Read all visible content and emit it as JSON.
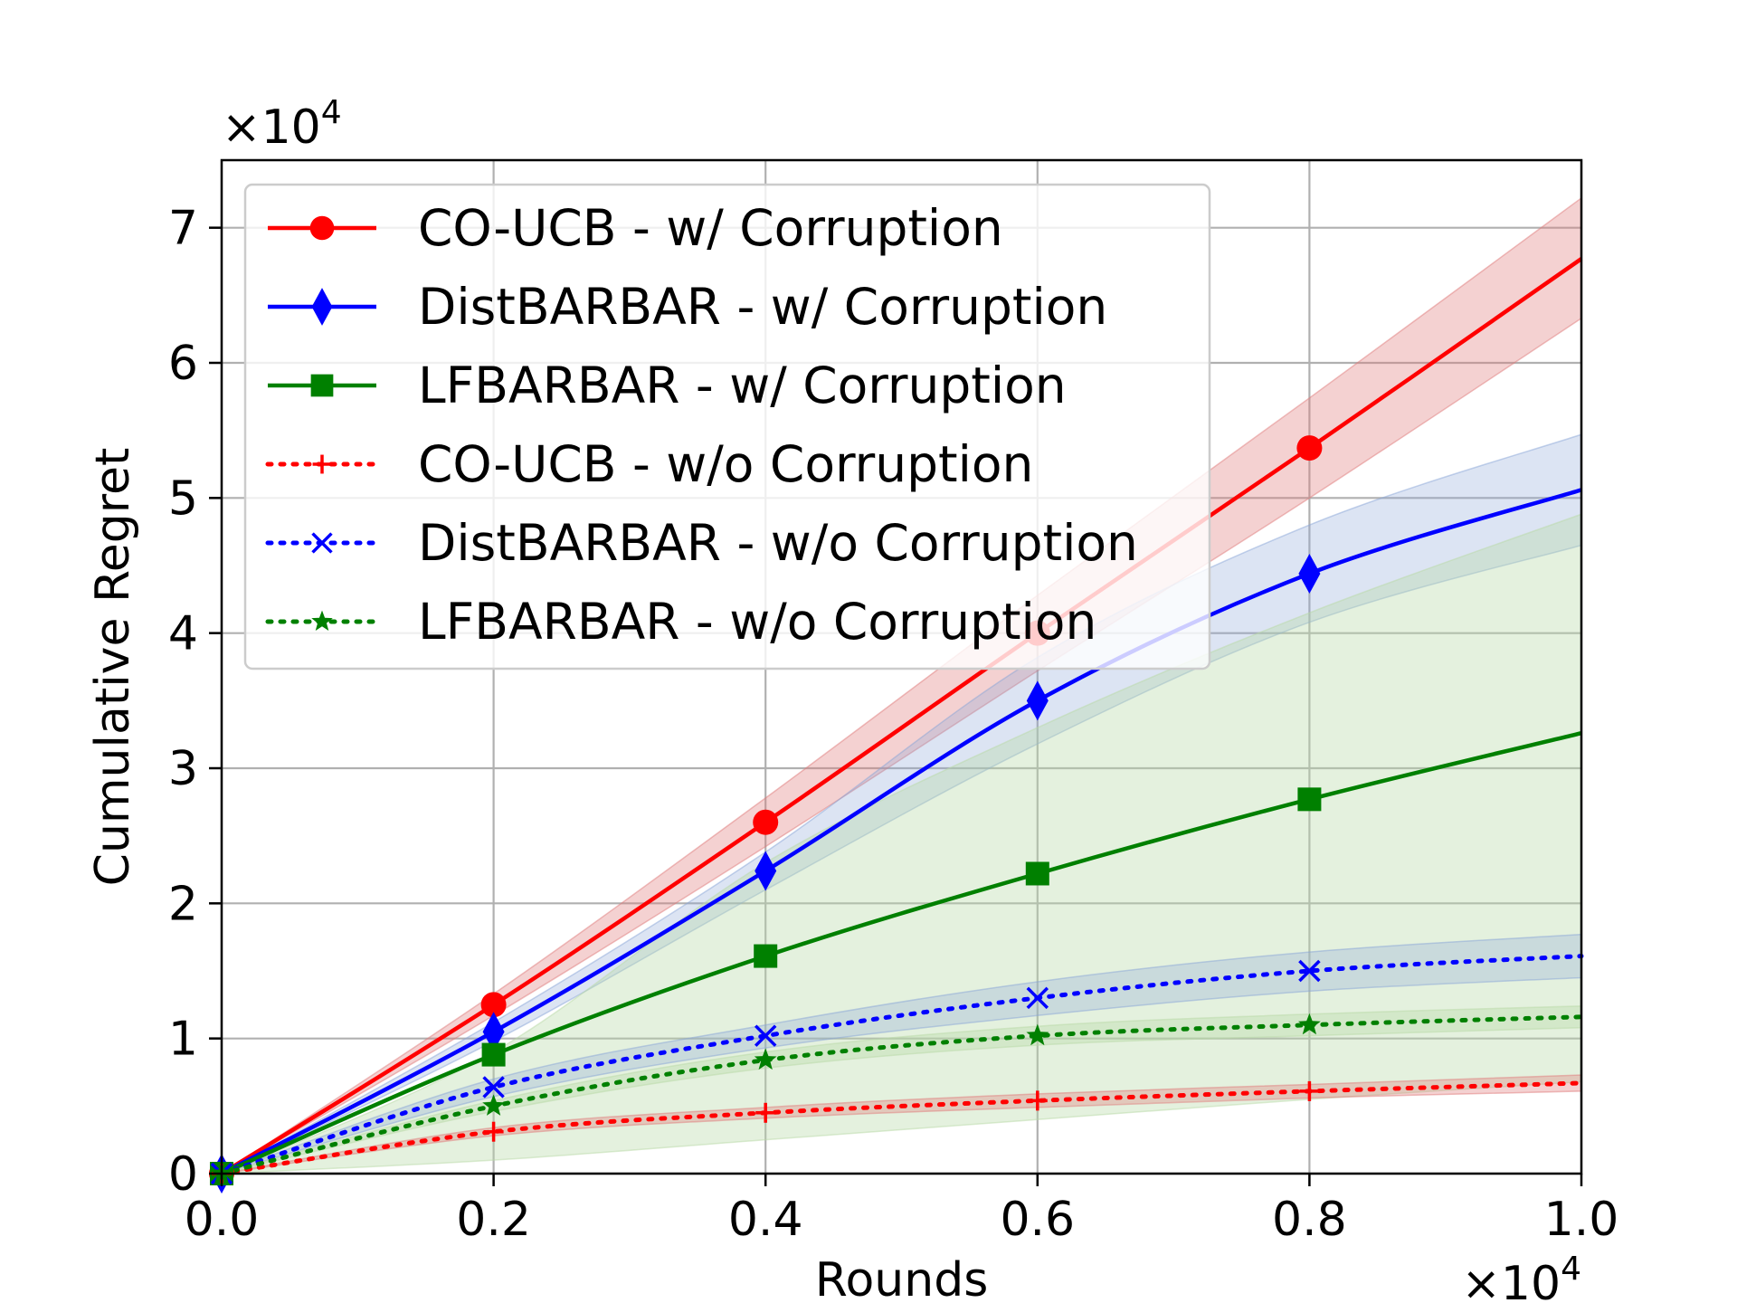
{
  "chart_data": {
    "type": "line",
    "xlabel": "Rounds",
    "ylabel": "Cumulative Regret",
    "x_multiplier": {
      "base": "×10",
      "exp": "4"
    },
    "y_multiplier": {
      "base": "×10",
      "exp": "4"
    },
    "xlim": [
      0.0,
      1.0
    ],
    "ylim": [
      0,
      7.5
    ],
    "xticks": [
      0.0,
      0.2,
      0.4,
      0.6,
      0.8,
      1.0
    ],
    "xtick_labels": [
      "0.0",
      "0.2",
      "0.4",
      "0.6",
      "0.8",
      "1.0"
    ],
    "yticks": [
      0,
      1,
      2,
      3,
      4,
      5,
      6,
      7
    ],
    "ytick_labels": [
      "0",
      "1",
      "2",
      "3",
      "4",
      "5",
      "6",
      "7"
    ],
    "grid": true,
    "legend_position": "top-left",
    "series": [
      {
        "name": "CO-UCB - w/ Corruption",
        "color": "#ff0000",
        "band_color": "#e07b7b",
        "band_opacity": 0.35,
        "line_style": "solid",
        "marker": "circle",
        "x": [
          0.0,
          0.2,
          0.4,
          0.6,
          0.8,
          1.0
        ],
        "y": [
          0.0,
          1.25,
          2.6,
          4.0,
          5.37,
          6.77
        ],
        "lower": [
          0.0,
          1.17,
          2.42,
          3.72,
          5.0,
          6.33
        ],
        "upper": [
          0.0,
          1.33,
          2.78,
          4.28,
          5.74,
          7.22
        ],
        "markers_x": [
          0.0,
          0.2,
          0.4,
          0.6,
          0.8
        ]
      },
      {
        "name": "DistBARBAR - w/ Corruption",
        "color": "#0000ff",
        "band_color": "#8aa6d8",
        "band_opacity": 0.3,
        "line_style": "solid",
        "marker": "diamond",
        "x": [
          0.0,
          0.2,
          0.4,
          0.6,
          0.8,
          1.0
        ],
        "y": [
          0.0,
          1.05,
          2.24,
          3.5,
          4.44,
          5.06
        ],
        "lower": [
          0.0,
          0.98,
          2.1,
          3.18,
          4.08,
          4.65
        ],
        "upper": [
          0.0,
          1.12,
          2.38,
          3.82,
          4.8,
          5.47
        ],
        "markers_x": [
          0.0,
          0.2,
          0.4,
          0.6,
          0.8
        ]
      },
      {
        "name": "LFBARBAR - w/ Corruption",
        "color": "#008000",
        "band_color": "#b9d9a8",
        "band_opacity": 0.38,
        "line_style": "solid",
        "marker": "square",
        "x": [
          0.0,
          0.2,
          0.4,
          0.6,
          0.8,
          1.0
        ],
        "y": [
          0.0,
          0.88,
          1.61,
          2.22,
          2.77,
          3.26
        ],
        "lower": [
          0.0,
          0.1,
          0.25,
          0.4,
          0.55,
          0.68
        ],
        "upper": [
          0.0,
          0.9,
          2.3,
          3.3,
          4.15,
          4.88
        ],
        "markers_x": [
          0.0,
          0.2,
          0.4,
          0.6,
          0.8
        ]
      },
      {
        "name": "CO-UCB - w/o Corruption",
        "color": "#ff0000",
        "band_color": "#e07b7b",
        "band_opacity": 0.35,
        "line_style": "dotted",
        "marker": "plus",
        "x": [
          0.0,
          0.2,
          0.4,
          0.6,
          0.8,
          1.0
        ],
        "y": [
          0.0,
          0.31,
          0.45,
          0.54,
          0.61,
          0.67
        ],
        "lower": [
          0.0,
          0.28,
          0.41,
          0.49,
          0.56,
          0.61
        ],
        "upper": [
          0.0,
          0.34,
          0.49,
          0.59,
          0.66,
          0.73
        ],
        "markers_x": [
          0.0,
          0.2,
          0.4,
          0.6,
          0.8
        ]
      },
      {
        "name": "DistBARBAR - w/o Corruption",
        "color": "#0000ff",
        "band_color": "#8aa6d8",
        "band_opacity": 0.3,
        "line_style": "dotted",
        "marker": "x",
        "x": [
          0.0,
          0.2,
          0.4,
          0.6,
          0.8,
          1.0
        ],
        "y": [
          0.0,
          0.64,
          1.02,
          1.3,
          1.5,
          1.61
        ],
        "lower": [
          0.0,
          0.57,
          0.93,
          1.17,
          1.35,
          1.45
        ],
        "upper": [
          0.0,
          0.7,
          1.1,
          1.42,
          1.64,
          1.77
        ],
        "markers_x": [
          0.0,
          0.2,
          0.4,
          0.6,
          0.8
        ]
      },
      {
        "name": "LFBARBAR - w/o Corruption",
        "color": "#008000",
        "band_color": "#b9d9a8",
        "band_opacity": 0.38,
        "line_style": "dotted",
        "marker": "star",
        "x": [
          0.0,
          0.2,
          0.4,
          0.6,
          0.8,
          1.0
        ],
        "y": [
          0.0,
          0.5,
          0.84,
          1.02,
          1.1,
          1.16
        ],
        "lower": [
          0.0,
          0.46,
          0.78,
          0.95,
          1.02,
          1.08
        ],
        "upper": [
          0.0,
          0.54,
          0.9,
          1.09,
          1.18,
          1.24
        ],
        "markers_x": [
          0.0,
          0.2,
          0.4,
          0.6,
          0.8
        ]
      }
    ]
  }
}
